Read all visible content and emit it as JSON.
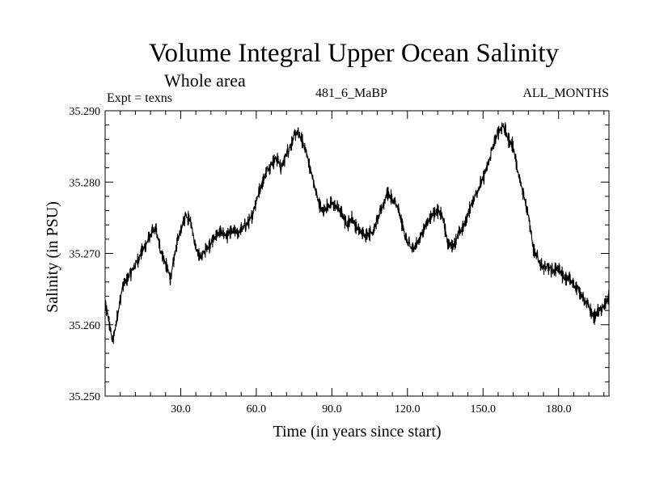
{
  "header": {
    "title": "Volume Integral Upper Ocean Salinity",
    "subtitle": "Whole area",
    "expt": "Expt = texns",
    "expname": "481_6_MaBP",
    "months": "ALL_MONTHS"
  },
  "chart_data": {
    "type": "line",
    "title": "Volume Integral Upper Ocean Salinity",
    "subtitle": "Whole area",
    "xlabel": "Time (in years since start)",
    "ylabel": "Salinity (in PSU)",
    "xlim": [
      0,
      200
    ],
    "ylim": [
      35.25,
      35.29
    ],
    "xticks": [
      30,
      60,
      90,
      120,
      150,
      180
    ],
    "xtick_labels": [
      "30.0",
      "60.0",
      "90.0",
      "120.0",
      "150.0",
      "180.0"
    ],
    "yticks": [
      35.25,
      35.26,
      35.27,
      35.28,
      35.29
    ],
    "ytick_labels": [
      "35.250",
      "35.260",
      "35.270",
      "35.280",
      "35.290"
    ],
    "noise_amplitude": 0.0012,
    "series": [
      {
        "name": "Salinity",
        "x": [
          0,
          1,
          3,
          5,
          7,
          9,
          12,
          15,
          18,
          20,
          22,
          24,
          26,
          28,
          30,
          32,
          34,
          36,
          38,
          40,
          42,
          44,
          46,
          48,
          50,
          53,
          56,
          58,
          60,
          62,
          64,
          66,
          68,
          70,
          72,
          74,
          76,
          78,
          80,
          82,
          84,
          86,
          88,
          90,
          92,
          94,
          96,
          98,
          100,
          103,
          106,
          108,
          110,
          112,
          114,
          116,
          118,
          120,
          122,
          124,
          126,
          128,
          130,
          132,
          134,
          136,
          138,
          140,
          142,
          144,
          146,
          148,
          150,
          152,
          154,
          156,
          158,
          160,
          162,
          164,
          166,
          168,
          170,
          172,
          174,
          176,
          178,
          180,
          182,
          184,
          186,
          188,
          190,
          192,
          194,
          196,
          198,
          200
        ],
        "values": [
          35.2625,
          35.2615,
          35.2575,
          35.2615,
          35.2655,
          35.2665,
          35.2685,
          35.2705,
          35.2725,
          35.2735,
          35.2705,
          35.2685,
          35.2665,
          35.2705,
          35.2735,
          35.2755,
          35.2745,
          35.2705,
          35.2695,
          35.2705,
          35.2715,
          35.2725,
          35.273,
          35.2725,
          35.273,
          35.273,
          35.274,
          35.275,
          35.2775,
          35.2795,
          35.2815,
          35.2825,
          35.2835,
          35.282,
          35.284,
          35.2855,
          35.287,
          35.286,
          35.284,
          35.281,
          35.278,
          35.276,
          35.2765,
          35.277,
          35.2765,
          35.2755,
          35.274,
          35.275,
          35.2735,
          35.2725,
          35.273,
          35.2745,
          35.2765,
          35.2785,
          35.2775,
          35.2765,
          35.274,
          35.2715,
          35.2705,
          35.2715,
          35.273,
          35.2745,
          35.2755,
          35.276,
          35.275,
          35.2715,
          35.271,
          35.2725,
          35.2735,
          35.2755,
          35.2775,
          35.279,
          35.2805,
          35.2825,
          35.285,
          35.287,
          35.288,
          35.286,
          35.285,
          35.281,
          35.2785,
          35.2755,
          35.2705,
          35.269,
          35.268,
          35.268,
          35.2675,
          35.268,
          35.2665,
          35.2665,
          35.2655,
          35.265,
          35.2635,
          35.2625,
          35.261,
          35.262,
          35.2625,
          35.264
        ]
      }
    ]
  }
}
